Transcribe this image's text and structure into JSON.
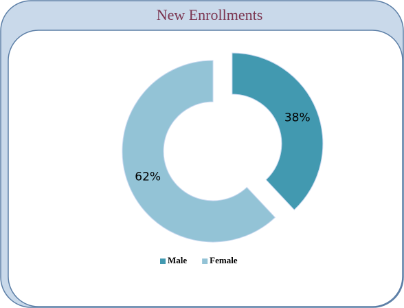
{
  "chart_data": {
    "type": "donut",
    "title": "New Enrollments",
    "categories": [
      "Male",
      "Female"
    ],
    "values": [
      38,
      62
    ],
    "value_labels": [
      "38%",
      "62%"
    ],
    "colors": [
      "#4299b0",
      "#93c3d6"
    ],
    "legend": "bottom"
  }
}
